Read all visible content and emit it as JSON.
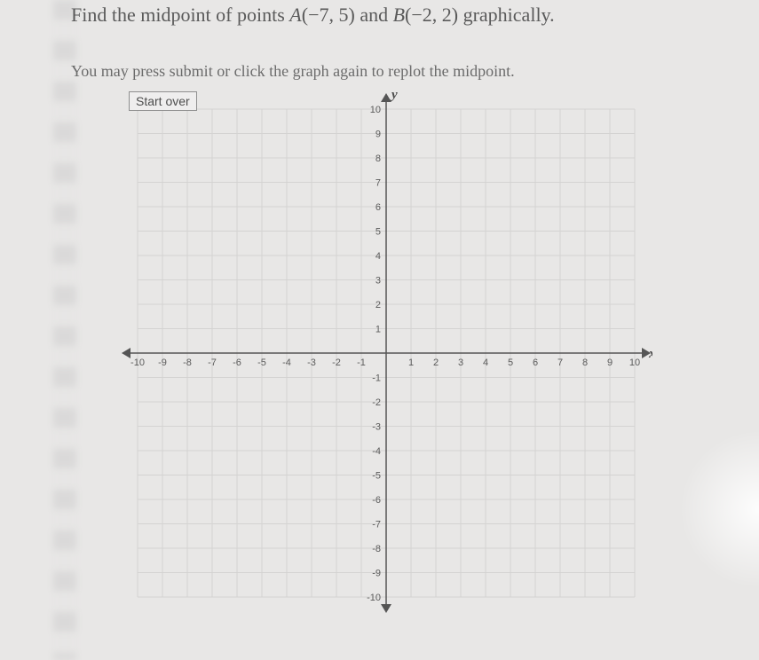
{
  "title_parts": {
    "pre": "Find the midpoint of points ",
    "ptA_label": "A",
    "ptA_coords": "(−7, 5)",
    "mid": " and ",
    "ptB_label": "B",
    "ptB_coords": "(−2, 2)",
    "post": " graphically."
  },
  "subtitle": "You may press submit or click the graph again to replot the midpoint.",
  "start_over_label": "Start over",
  "graph": {
    "xmin": -10,
    "xmax": 10,
    "ymin": -10,
    "ymax": 10,
    "tick_step": 1,
    "x_axis_label": "x",
    "y_axis_label": "y",
    "grid_color": "#d4d3d2",
    "axis_color": "#555555",
    "background": "#e8e7e6",
    "tick_fontsize": 11,
    "axis_label_fontsize": 15,
    "x_ticks_neg": [
      "-10",
      "-9",
      "-8",
      "-7",
      "-6",
      "-5",
      "-4",
      "-3",
      "-2",
      "-1"
    ],
    "x_ticks_pos": [
      "1",
      "2",
      "3",
      "4",
      "5",
      "6",
      "7",
      "8",
      "9",
      "10"
    ],
    "y_ticks_pos": [
      "1",
      "2",
      "3",
      "4",
      "5",
      "6",
      "7",
      "8",
      "9",
      "10"
    ],
    "y_ticks_neg": [
      "-1",
      "-2",
      "-3",
      "-4",
      "-5",
      "-6",
      "-7",
      "-8",
      "-9",
      "-10"
    ]
  }
}
